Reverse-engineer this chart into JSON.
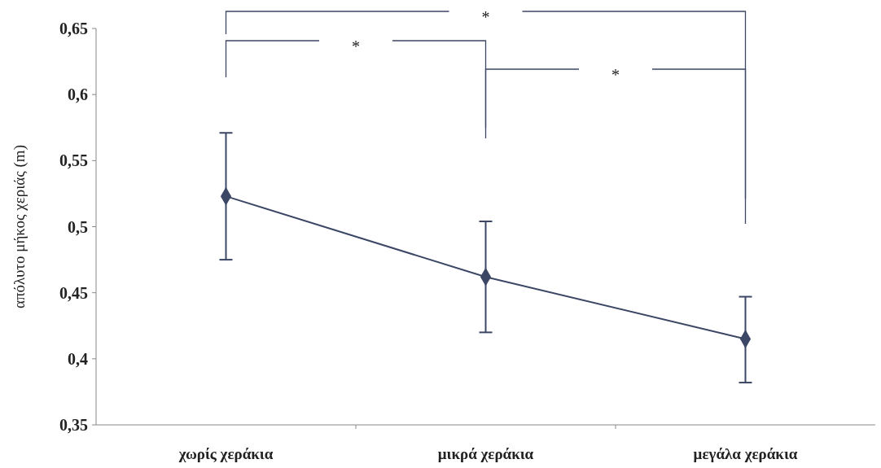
{
  "chart_data": {
    "type": "line",
    "ylabel": "απόλυτο μήκος χεριάς (m)",
    "categories": [
      "χωρίς χεράκια",
      "μικρά χεράκια",
      "μεγάλα χεράκια"
    ],
    "series": [
      {
        "color": "#3c4766",
        "values": [
          0.523,
          0.462,
          0.415
        ],
        "errors": [
          [
            0.475,
            0.571
          ],
          [
            0.42,
            0.504
          ],
          [
            0.382,
            0.447
          ]
        ]
      }
    ],
    "ylim": [
      0.35,
      0.65
    ],
    "yticks": [
      {
        "value": 0.35,
        "label": "0,35"
      },
      {
        "value": 0.4,
        "label": "0,4"
      },
      {
        "value": 0.45,
        "label": "0,45"
      },
      {
        "value": 0.5,
        "label": "0,5"
      },
      {
        "value": 0.55,
        "label": "0,55"
      },
      {
        "value": 0.6,
        "label": "0,6"
      },
      {
        "value": 0.65,
        "label": "0,65"
      }
    ],
    "annotations": [
      "*",
      "*",
      "*"
    ],
    "marker": "diamond",
    "line_style": "solid",
    "grid": false
  }
}
